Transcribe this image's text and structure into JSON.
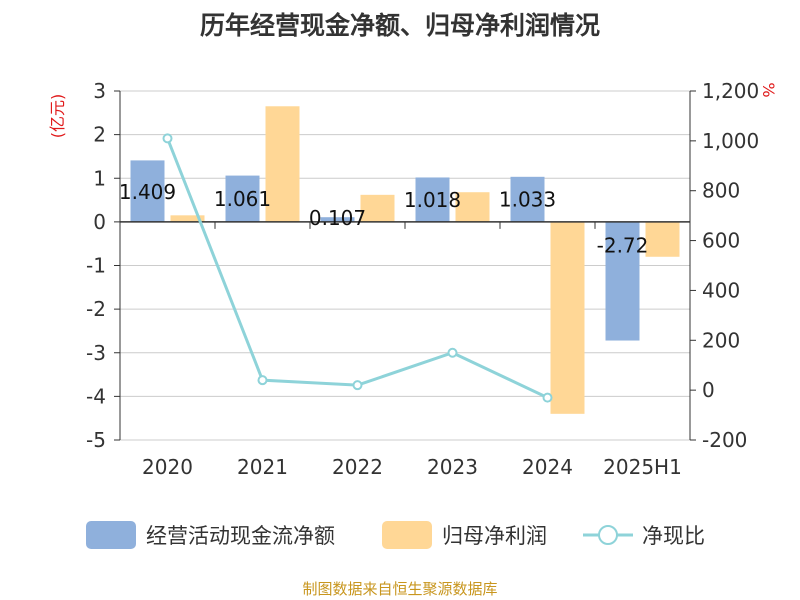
{
  "title": "历年经营现金净额、归母净利润情况",
  "source": "制图数据来自恒生聚源数据库",
  "chart_data": {
    "type": "bar",
    "categories": [
      "2020",
      "2021",
      "2022",
      "2023",
      "2024",
      "2025H1"
    ],
    "y_left": {
      "unit": "(亿元)",
      "range": [
        -5,
        3
      ],
      "ticks": [
        "3",
        "2",
        "1",
        "0",
        "-1",
        "-2",
        "-3",
        "-4",
        "-5"
      ]
    },
    "y_right": {
      "unit": "%",
      "range": [
        -200,
        1200
      ],
      "ticks": [
        "1,200",
        "1,000",
        "800",
        "600",
        "400",
        "200",
        "0",
        "-200"
      ]
    },
    "series": [
      {
        "name": "经营活动现金流净额",
        "type": "bar",
        "axis": "left",
        "color": "#8fb0dc",
        "values": [
          1.409,
          1.061,
          0.107,
          1.018,
          1.033,
          -2.72
        ],
        "labels": [
          "1.409",
          "1.061",
          "0.107",
          "1.018",
          "1.033",
          "-2.72"
        ]
      },
      {
        "name": "归母净利润",
        "type": "bar",
        "axis": "left",
        "color": "#ffd796",
        "values": [
          0.15,
          2.65,
          0.62,
          0.68,
          -4.4,
          -0.8
        ]
      },
      {
        "name": "净现比",
        "type": "line",
        "axis": "right",
        "color": "#8ed3d9",
        "values": [
          1010,
          40,
          20,
          150,
          -30,
          null
        ]
      }
    ],
    "legend": "bottom",
    "grid": true
  }
}
